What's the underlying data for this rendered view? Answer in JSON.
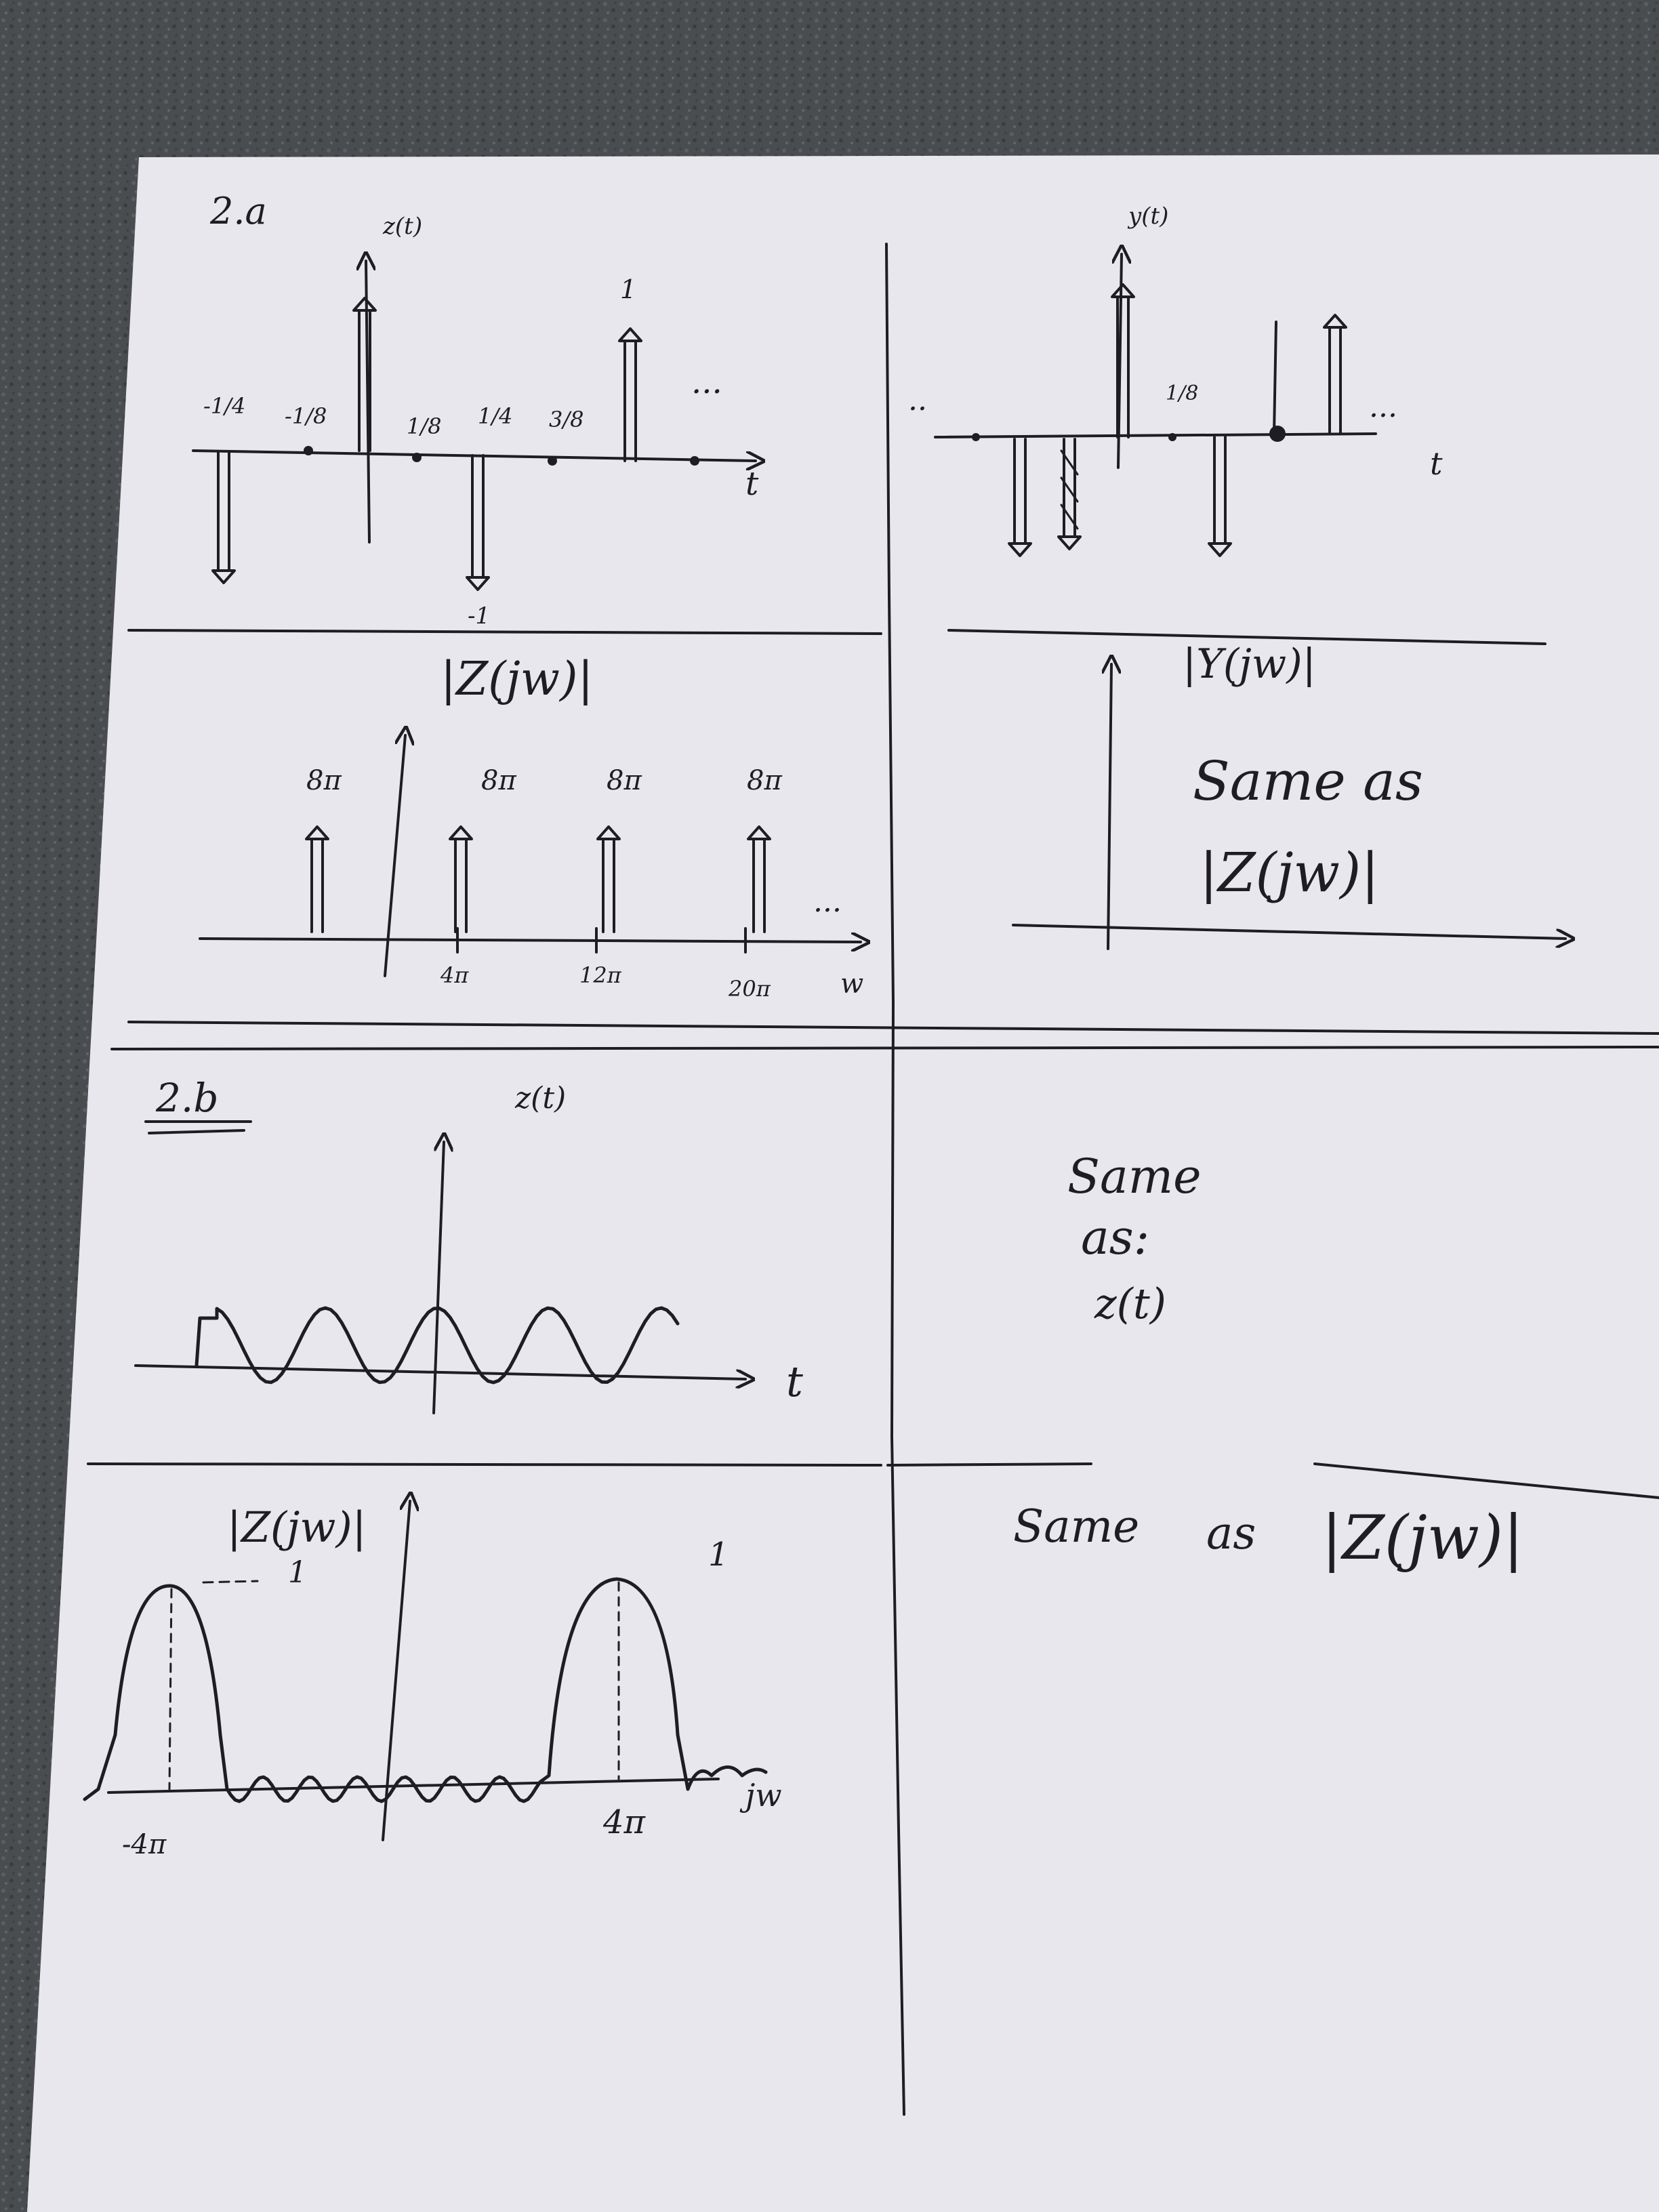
{
  "colors": {
    "carpet": "#4a4d4f",
    "paper": "#e9e7ee",
    "ink": "#1e1e22"
  },
  "part_a": {
    "label": "2.a",
    "z_time": {
      "title": "z(t)",
      "tick_labels": [
        "-1/4",
        "-1/8",
        "1/8",
        "1/4",
        "3/8"
      ],
      "peak_label": "1",
      "trough_label": "-1",
      "axis_label": "t",
      "continuation": "..."
    },
    "y_time": {
      "title": "y(t)",
      "tick_label": "1/8",
      "axis_label": "t",
      "continuation_left": "..",
      "continuation_right": "..."
    },
    "z_freq": {
      "title": "|Z(jw)|",
      "impulse_labels": [
        "8π",
        "8π",
        "8π",
        "8π"
      ],
      "tick_labels": [
        "4π",
        "12π",
        "20π"
      ],
      "axis_label": "w",
      "continuation": "..."
    },
    "y_freq": {
      "title": "|Y(jw)|",
      "note_line1": "Same as",
      "note_line2": "|Z(jw)|"
    }
  },
  "part_b": {
    "label": "2.b",
    "z_time": {
      "title": "z(t)",
      "axis_label": "t"
    },
    "time_note": {
      "line1": "Same",
      "line2": "as:",
      "line3": "z(t)"
    },
    "z_freq": {
      "title": "|Z(jw)|",
      "peak_label_left": "1",
      "peak_label_right": "1",
      "tick_left": "-4π",
      "tick_right": "4π",
      "axis_label": "jw"
    },
    "freq_note": {
      "line1": "Same",
      "line2": "as",
      "line3": "|Z(jw)|"
    }
  }
}
